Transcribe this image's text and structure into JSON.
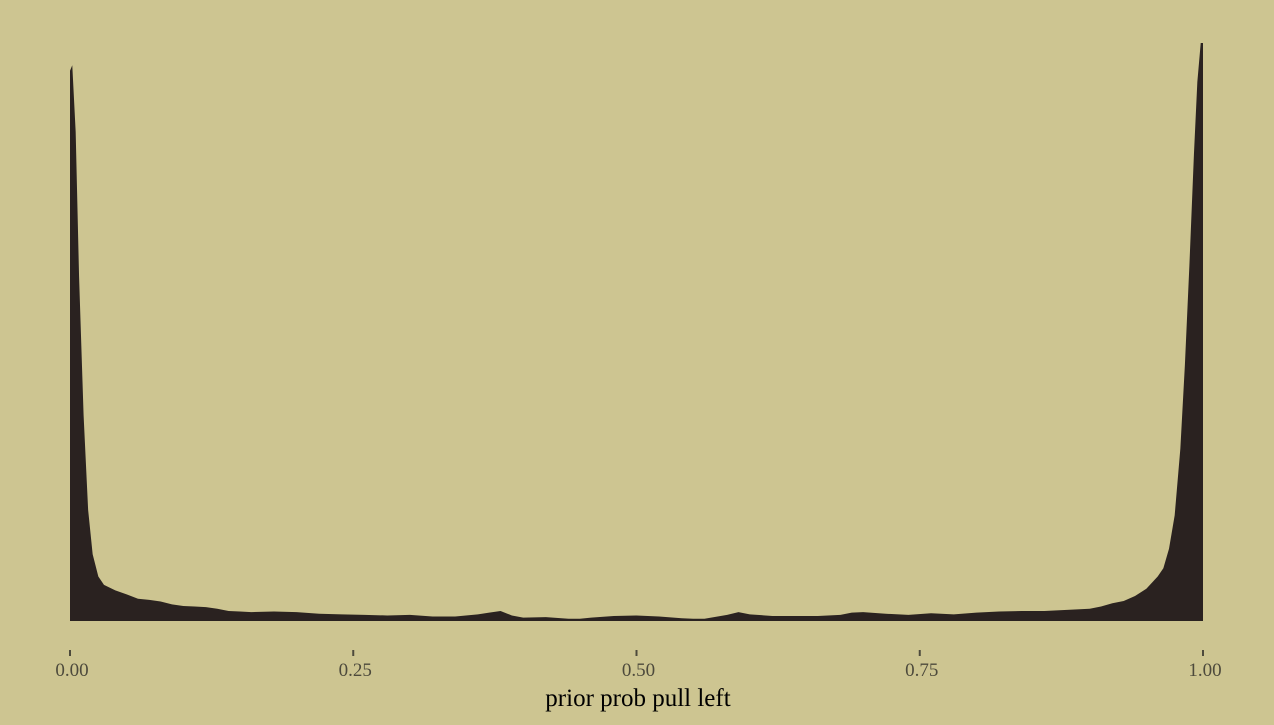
{
  "colors": {
    "background": "#cdc591",
    "density_fill": "#2a2220",
    "tick": "#4d4a3c",
    "axis_title": "#000000"
  },
  "chart_data": {
    "type": "area",
    "title": "",
    "xlabel": "prior prob pull left",
    "ylabel": "",
    "xlim": [
      0,
      1
    ],
    "ylim": [
      0,
      1.04
    ],
    "x_ticks": [
      0,
      0.25,
      0.5,
      0.75,
      1
    ],
    "x_tick_labels": [
      "0.00",
      "0.25",
      "0.50",
      "0.75",
      "1.00"
    ],
    "y_ticks_shown": false,
    "grid": false,
    "legend": "none",
    "series": [
      {
        "x": [
          0,
          0.002,
          0.005,
          0.008,
          0.012,
          0.016,
          0.02,
          0.025,
          0.03,
          0.035,
          0.04,
          0.05,
          0.06,
          0.07,
          0.08,
          0.09,
          0.1,
          0.11,
          0.12,
          0.13,
          0.14,
          0.15,
          0.16,
          0.18,
          0.2,
          0.22,
          0.24,
          0.26,
          0.28,
          0.3,
          0.32,
          0.34,
          0.36,
          0.37,
          0.38,
          0.39,
          0.4,
          0.42,
          0.44,
          0.45,
          0.46,
          0.48,
          0.5,
          0.52,
          0.54,
          0.55,
          0.56,
          0.58,
          0.59,
          0.6,
          0.62,
          0.64,
          0.66,
          0.68,
          0.69,
          0.7,
          0.72,
          0.74,
          0.76,
          0.78,
          0.8,
          0.82,
          0.84,
          0.86,
          0.88,
          0.9,
          0.91,
          0.92,
          0.93,
          0.94,
          0.95,
          0.96,
          0.965,
          0.97,
          0.975,
          0.98,
          0.984,
          0.988,
          0.992,
          0.995,
          0.998,
          1
        ],
        "y": [
          0.99,
          1.0,
          0.88,
          0.62,
          0.37,
          0.2,
          0.12,
          0.08,
          0.065,
          0.06,
          0.055,
          0.048,
          0.04,
          0.038,
          0.035,
          0.03,
          0.027,
          0.026,
          0.025,
          0.022,
          0.018,
          0.017,
          0.016,
          0.017,
          0.016,
          0.013,
          0.012,
          0.011,
          0.01,
          0.011,
          0.008,
          0.008,
          0.012,
          0.015,
          0.018,
          0.01,
          0.006,
          0.007,
          0.004,
          0.004,
          0.006,
          0.009,
          0.01,
          0.008,
          0.005,
          0.004,
          0.004,
          0.011,
          0.016,
          0.012,
          0.009,
          0.009,
          0.009,
          0.011,
          0.015,
          0.016,
          0.013,
          0.011,
          0.014,
          0.012,
          0.015,
          0.017,
          0.018,
          0.018,
          0.02,
          0.022,
          0.026,
          0.032,
          0.036,
          0.045,
          0.058,
          0.08,
          0.095,
          0.13,
          0.19,
          0.31,
          0.46,
          0.64,
          0.84,
          0.97,
          1.04,
          1.04
        ]
      }
    ]
  }
}
